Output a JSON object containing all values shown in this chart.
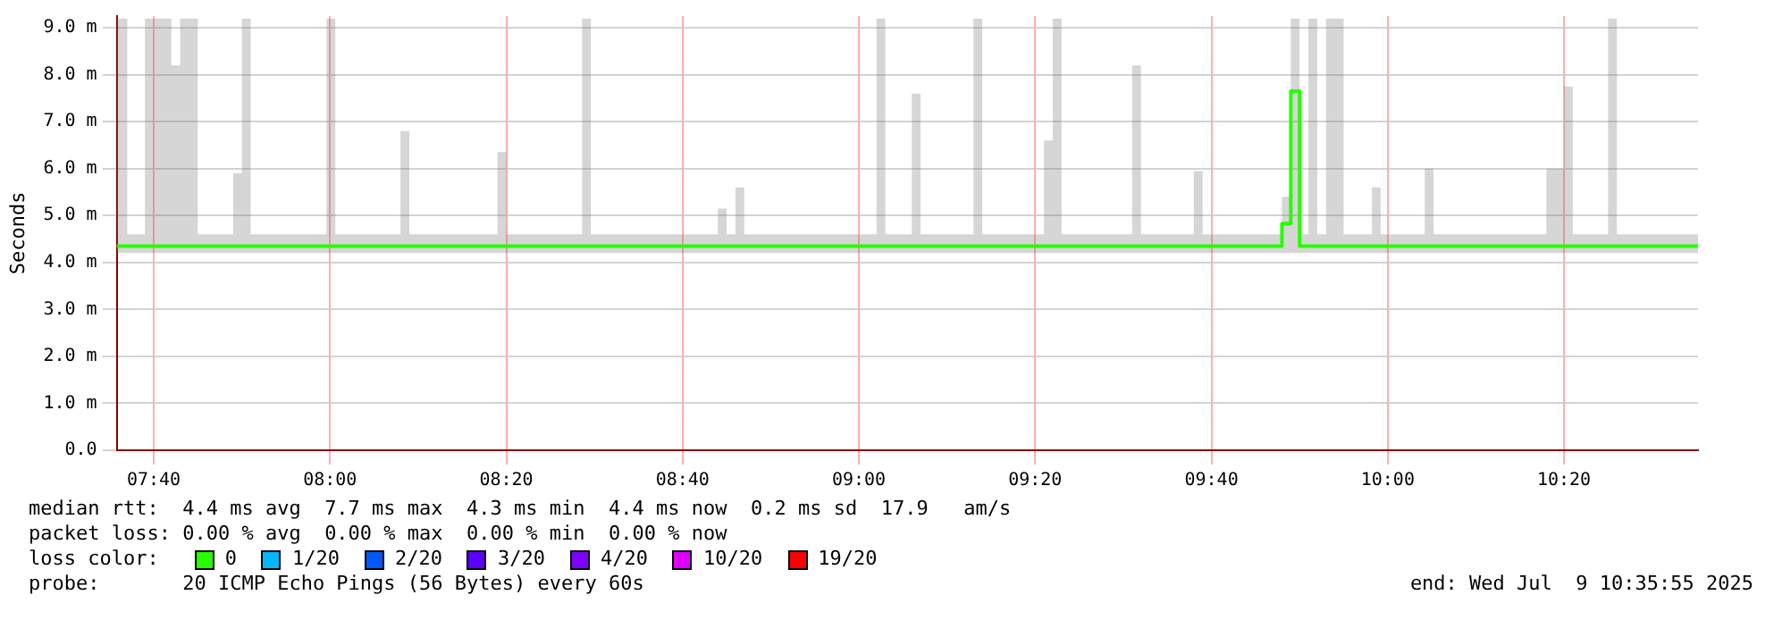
{
  "chart_data": {
    "type": "step",
    "ylabel": "Seconds",
    "legend_title": "loss color:",
    "legend": "bottom",
    "grid": true,
    "line_style": "solid",
    "marker": "none",
    "x": [
      7.5967,
      7.6167,
      7.65,
      7.7,
      7.7167,
      7.75,
      7.8167,
      7.8333,
      7.85,
      7.9933,
      8.01,
      8.1333,
      8.15,
      8.3167,
      8.3333,
      8.4767,
      8.4933,
      8.7333,
      8.75,
      8.7667,
      8.7833,
      9.0333,
      9.05,
      9.1,
      9.1167,
      9.2167,
      9.2333,
      9.35,
      9.3667,
      9.3833,
      9.5167,
      9.5333,
      9.6333,
      9.65,
      9.8,
      9.8167,
      9.8333,
      9.85,
      9.8667,
      9.8833,
      9.9167,
      9.97,
      9.9867,
      10.07,
      10.0867,
      10.3,
      10.3333,
      10.35,
      10.4167,
      10.4333,
      10.5867
    ],
    "xlim": [
      7.5967,
      10.5867
    ],
    "xticks": [
      {
        "value": 7.6667,
        "label": "07:40"
      },
      {
        "value": 8,
        "label": "08:00"
      },
      {
        "value": 8.3333,
        "label": "08:20"
      },
      {
        "value": 8.6667,
        "label": "08:40"
      },
      {
        "value": 9,
        "label": "09:00"
      },
      {
        "value": 9.3333,
        "label": "09:20"
      },
      {
        "value": 9.6667,
        "label": "09:40"
      },
      {
        "value": 10,
        "label": "10:00"
      },
      {
        "value": 10.3333,
        "label": "10:20"
      }
    ],
    "ylim": [
      0,
      9.25
    ],
    "yticks": [
      {
        "value": 0,
        "label": "0.0"
      },
      {
        "value": 1,
        "label": "1.0 m"
      },
      {
        "value": 2,
        "label": "2.0 m"
      },
      {
        "value": 3,
        "label": "3.0 m"
      },
      {
        "value": 4,
        "label": "4.0 m"
      },
      {
        "value": 5,
        "label": "5.0 m"
      },
      {
        "value": 6,
        "label": "6.0 m"
      },
      {
        "value": 7,
        "label": "7.0 m"
      },
      {
        "value": 8,
        "label": "8.0 m"
      },
      {
        "value": 9,
        "label": "9.0 m"
      }
    ],
    "series": [
      {
        "name": "0",
        "color": "#26ff00",
        "values": [
          4.35,
          4.35,
          4.35,
          4.35,
          4.35,
          4.35,
          4.35,
          4.35,
          4.35,
          4.35,
          4.35,
          4.35,
          4.35,
          4.35,
          4.35,
          4.35,
          4.35,
          4.35,
          4.35,
          4.35,
          4.35,
          4.35,
          4.35,
          4.35,
          4.35,
          4.35,
          4.35,
          4.35,
          4.35,
          4.35,
          4.35,
          4.35,
          4.35,
          4.35,
          4.83,
          7.65,
          4.35,
          4.35,
          4.35,
          4.35,
          4.35,
          4.35,
          4.35,
          4.35,
          4.35,
          4.35,
          4.35,
          4.35,
          4.35,
          4.35,
          4.35
        ],
        "lower": [
          4.2,
          4.2,
          4.2,
          4.2,
          4.2,
          4.2,
          4.2,
          4.2,
          4.2,
          4.2,
          4.2,
          4.2,
          4.2,
          4.2,
          4.2,
          4.2,
          4.2,
          4.2,
          4.2,
          4.2,
          4.2,
          4.2,
          4.2,
          4.2,
          4.2,
          4.2,
          4.2,
          4.2,
          4.2,
          4.2,
          4.2,
          4.2,
          4.2,
          4.2,
          4.2,
          4.2,
          4.2,
          4.2,
          4.2,
          4.2,
          4.2,
          4.2,
          4.2,
          4.2,
          4.2,
          4.2,
          4.2,
          4.2,
          4.2,
          4.2,
          4.2
        ],
        "upper": [
          9.2,
          4.6,
          9.2,
          8.2,
          9.2,
          4.6,
          5.9,
          9.2,
          4.6,
          9.2,
          4.6,
          6.8,
          4.6,
          6.35,
          4.6,
          9.2,
          4.6,
          5.15,
          4.6,
          5.6,
          4.6,
          9.2,
          4.6,
          7.6,
          4.6,
          9.2,
          4.6,
          6.6,
          9.2,
          4.6,
          8.2,
          4.6,
          5.95,
          4.6,
          5.4,
          9.2,
          4.6,
          9.2,
          4.6,
          9.2,
          4.6,
          5.6,
          4.6,
          6.0,
          4.6,
          6.0,
          7.75,
          4.6,
          9.2,
          4.6,
          4.6
        ]
      },
      {
        "name": "1/20",
        "color": "#00b8ff",
        "values": [
          null,
          null,
          null,
          null,
          null,
          null,
          null,
          null,
          null,
          null,
          null,
          null,
          null,
          null,
          null,
          null,
          null,
          null,
          null,
          null,
          null,
          null,
          null,
          null,
          null,
          null,
          null,
          null,
          null,
          null,
          null,
          null,
          null,
          null,
          null,
          null,
          null,
          null,
          null,
          null,
          null,
          null,
          null,
          null,
          null,
          null,
          null,
          null,
          null,
          null,
          null
        ]
      },
      {
        "name": "2/20",
        "color": "#0059ff",
        "values": [
          null,
          null,
          null,
          null,
          null,
          null,
          null,
          null,
          null,
          null,
          null,
          null,
          null,
          null,
          null,
          null,
          null,
          null,
          null,
          null,
          null,
          null,
          null,
          null,
          null,
          null,
          null,
          null,
          null,
          null,
          null,
          null,
          null,
          null,
          null,
          null,
          null,
          null,
          null,
          null,
          null,
          null,
          null,
          null,
          null,
          null,
          null,
          null,
          null,
          null,
          null
        ]
      },
      {
        "name": "3/20",
        "color": "#5e00ff",
        "values": [
          null,
          null,
          null,
          null,
          null,
          null,
          null,
          null,
          null,
          null,
          null,
          null,
          null,
          null,
          null,
          null,
          null,
          null,
          null,
          null,
          null,
          null,
          null,
          null,
          null,
          null,
          null,
          null,
          null,
          null,
          null,
          null,
          null,
          null,
          null,
          null,
          null,
          null,
          null,
          null,
          null,
          null,
          null,
          null,
          null,
          null,
          null,
          null,
          null,
          null,
          null
        ]
      },
      {
        "name": "4/20",
        "color": "#7e00ff",
        "values": [
          null,
          null,
          null,
          null,
          null,
          null,
          null,
          null,
          null,
          null,
          null,
          null,
          null,
          null,
          null,
          null,
          null,
          null,
          null,
          null,
          null,
          null,
          null,
          null,
          null,
          null,
          null,
          null,
          null,
          null,
          null,
          null,
          null,
          null,
          null,
          null,
          null,
          null,
          null,
          null,
          null,
          null,
          null,
          null,
          null,
          null,
          null,
          null,
          null,
          null,
          null
        ]
      },
      {
        "name": "10/20",
        "color": "#dd00ff",
        "values": [
          null,
          null,
          null,
          null,
          null,
          null,
          null,
          null,
          null,
          null,
          null,
          null,
          null,
          null,
          null,
          null,
          null,
          null,
          null,
          null,
          null,
          null,
          null,
          null,
          null,
          null,
          null,
          null,
          null,
          null,
          null,
          null,
          null,
          null,
          null,
          null,
          null,
          null,
          null,
          null,
          null,
          null,
          null,
          null,
          null,
          null,
          null,
          null,
          null,
          null,
          null
        ]
      },
      {
        "name": "19/20",
        "color": "#ff0000",
        "values": [
          null,
          null,
          null,
          null,
          null,
          null,
          null,
          null,
          null,
          null,
          null,
          null,
          null,
          null,
          null,
          null,
          null,
          null,
          null,
          null,
          null,
          null,
          null,
          null,
          null,
          null,
          null,
          null,
          null,
          null,
          null,
          null,
          null,
          null,
          null,
          null,
          null,
          null,
          null,
          null,
          null,
          null,
          null,
          null,
          null,
          null,
          null,
          null,
          null,
          null,
          null
        ]
      }
    ],
    "annotations": [
      "median rtt:  4.4 ms avg  7.7 ms max  4.3 ms min  4.4 ms now  0.2 ms sd  17.9   am/s",
      "packet loss: 0.00 % avg  0.00 % max  0.00 % min  0.00 % now",
      "probe:       20 ICMP Echo Pings (56 Bytes) every 60s",
      "end: Wed Jul  9 10:35:55 2025"
    ]
  }
}
